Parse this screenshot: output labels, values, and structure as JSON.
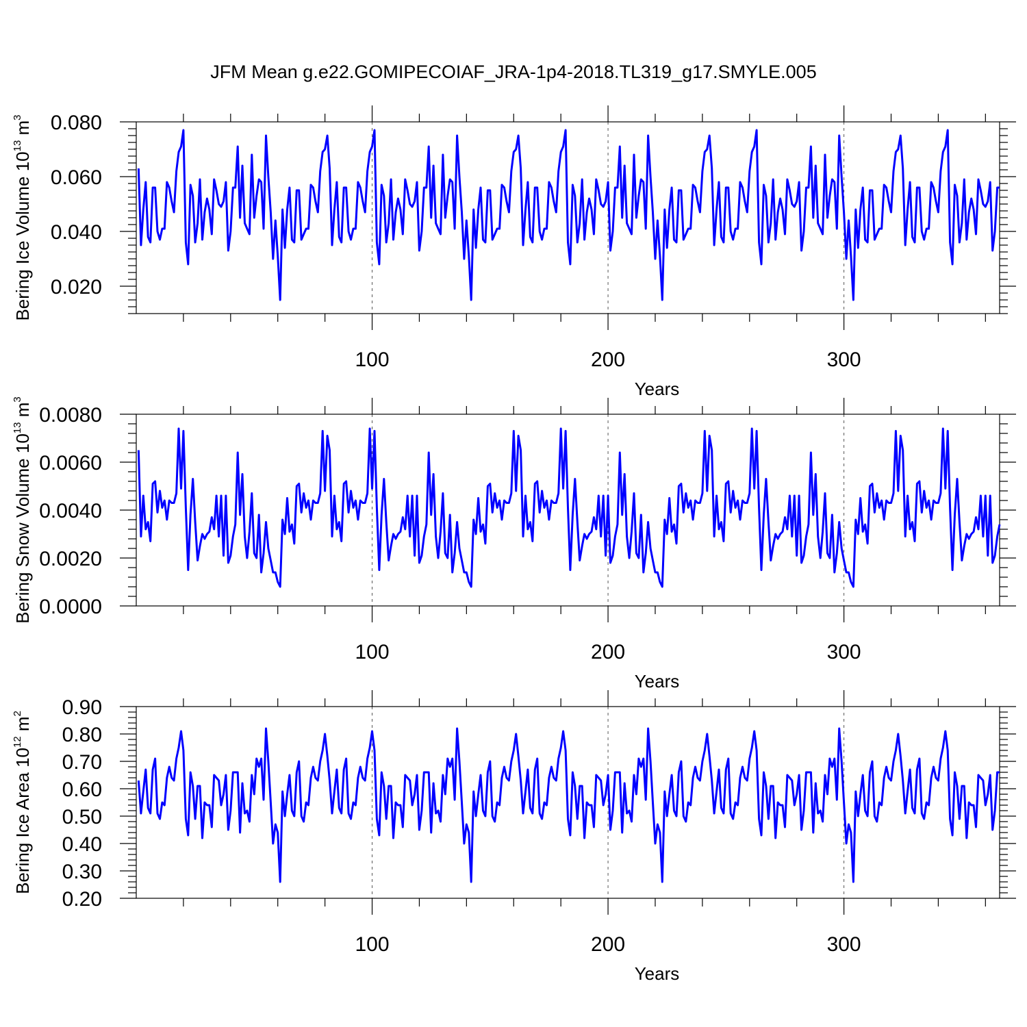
{
  "title": "JFM Mean g.e22.GOMIPECOIAF_JRA-1p4-2018.TL319_g17.SMYLE.005",
  "colors": {
    "series": "#0000ff",
    "axis": "#000000"
  },
  "chart_data": [
    {
      "type": "line",
      "ylabel": {
        "main": "Bering Ice Volume 10",
        "sup_exp": "13",
        "unit": " m",
        "sup_unit": "3"
      },
      "xlabel": "Years",
      "xlim": [
        0,
        366
      ],
      "ylim": [
        0.01,
        0.08
      ],
      "yticks": [
        0.02,
        0.04,
        0.06,
        0.08
      ],
      "ytick_labels": [
        "0.020",
        "0.040",
        "0.060",
        "0.080"
      ],
      "xticks": [
        100,
        200,
        300
      ],
      "xtick_labels": [
        "100",
        "200",
        "300"
      ],
      "grid": "dashed vertical at 100, 200, 300",
      "series": [
        {
          "values": [
            0.063,
            0.035,
            0.048,
            0.058,
            0.038,
            0.036,
            0.056,
            0.056,
            0.04,
            0.037,
            0.041,
            0.041,
            0.058,
            0.056,
            0.051,
            0.047,
            0.062,
            0.069,
            0.071,
            0.077,
            0.036,
            0.028,
            0.057,
            0.053,
            0.036,
            0.043,
            0.059,
            0.037,
            0.047,
            0.052,
            0.048,
            0.039,
            0.059,
            0.055,
            0.05,
            0.049,
            0.051,
            0.058,
            0.033,
            0.04,
            0.056,
            0.056,
            0.071,
            0.045,
            0.064,
            0.043,
            0.041,
            0.039,
            0.068,
            0.045,
            0.053,
            0.059,
            0.058,
            0.041,
            0.075,
            0.06,
            0.047,
            0.03,
            0.044,
            0.031,
            0.015,
            0.048,
            0.034,
            0.048,
            0.056,
            0.037,
            0.036,
            0.055,
            0.055,
            0.037,
            0.039,
            0.041,
            0.041,
            0.057,
            0.056,
            0.051,
            0.047,
            0.062,
            0.069,
            0.07,
            0.075
          ]
        }
      ]
    },
    {
      "type": "line",
      "ylabel": {
        "main": "Bering Snow Volume 10",
        "sup_exp": "13",
        "unit": " m",
        "sup_unit": "3"
      },
      "xlabel": "Years",
      "xlim": [
        0,
        366
      ],
      "ylim": [
        0.0,
        0.008
      ],
      "yticks": [
        0.0,
        0.002,
        0.004,
        0.006,
        0.008
      ],
      "ytick_labels": [
        "0.0000",
        "0.0020",
        "0.0040",
        "0.0060",
        "0.0080"
      ],
      "xticks": [
        100,
        200,
        300
      ],
      "xtick_labels": [
        "100",
        "200",
        "300"
      ],
      "grid": "dashed vertical at 100, 200, 300",
      "series": [
        {
          "values": [
            0.0065,
            0.0029,
            0.0046,
            0.0032,
            0.0035,
            0.0027,
            0.0051,
            0.0052,
            0.0039,
            0.0048,
            0.0041,
            0.0044,
            0.0036,
            0.0044,
            0.0043,
            0.0043,
            0.0047,
            0.0074,
            0.0049,
            0.0073,
            0.0041,
            0.0015,
            0.0038,
            0.0053,
            0.0035,
            0.0019,
            0.0025,
            0.003,
            0.0028,
            0.003,
            0.0031,
            0.0037,
            0.0032,
            0.0046,
            0.0029,
            0.0046,
            0.0021,
            0.0046,
            0.0018,
            0.0021,
            0.0029,
            0.0034,
            0.0064,
            0.0038,
            0.0055,
            0.0029,
            0.002,
            0.0031,
            0.0047,
            0.0022,
            0.002,
            0.0038,
            0.0014,
            0.0022,
            0.0035,
            0.0024,
            0.0019,
            0.0014,
            0.0014,
            0.001,
            0.0008,
            0.0036,
            0.003,
            0.0045,
            0.0031,
            0.0034,
            0.0026,
            0.005,
            0.0051,
            0.0039,
            0.0047,
            0.0041,
            0.0044,
            0.0036,
            0.0044,
            0.0043,
            0.0043,
            0.0047,
            0.0073,
            0.0048,
            0.0071
          ]
        }
      ]
    },
    {
      "type": "line",
      "ylabel": {
        "main": "Bering Ice Area 10",
        "sup_exp": "12",
        "unit": " m",
        "sup_unit": "2"
      },
      "xlabel": "Years",
      "xlim": [
        0,
        366
      ],
      "ylim": [
        0.2,
        0.9
      ],
      "yticks": [
        0.2,
        0.3,
        0.4,
        0.5,
        0.6,
        0.7,
        0.8,
        0.9
      ],
      "ytick_labels": [
        "0.20",
        "0.30",
        "0.40",
        "0.50",
        "0.60",
        "0.70",
        "0.80",
        "0.90"
      ],
      "xticks": [
        100,
        200,
        300
      ],
      "xtick_labels": [
        "100",
        "200",
        "300"
      ],
      "grid": "dashed vertical at 100, 200, 300",
      "series": [
        {
          "values": [
            0.63,
            0.51,
            0.59,
            0.67,
            0.53,
            0.51,
            0.67,
            0.71,
            0.51,
            0.49,
            0.55,
            0.54,
            0.64,
            0.68,
            0.64,
            0.63,
            0.71,
            0.75,
            0.81,
            0.74,
            0.49,
            0.43,
            0.66,
            0.61,
            0.49,
            0.61,
            0.61,
            0.42,
            0.55,
            0.54,
            0.54,
            0.46,
            0.65,
            0.64,
            0.63,
            0.54,
            0.58,
            0.65,
            0.45,
            0.52,
            0.66,
            0.66,
            0.66,
            0.44,
            0.62,
            0.51,
            0.52,
            0.48,
            0.65,
            0.58,
            0.71,
            0.68,
            0.71,
            0.56,
            0.82,
            0.7,
            0.55,
            0.4,
            0.47,
            0.44,
            0.26,
            0.59,
            0.5,
            0.58,
            0.65,
            0.52,
            0.5,
            0.66,
            0.7,
            0.5,
            0.48,
            0.55,
            0.54,
            0.64,
            0.68,
            0.64,
            0.63,
            0.7,
            0.74,
            0.8,
            0.72
          ]
        }
      ]
    }
  ]
}
